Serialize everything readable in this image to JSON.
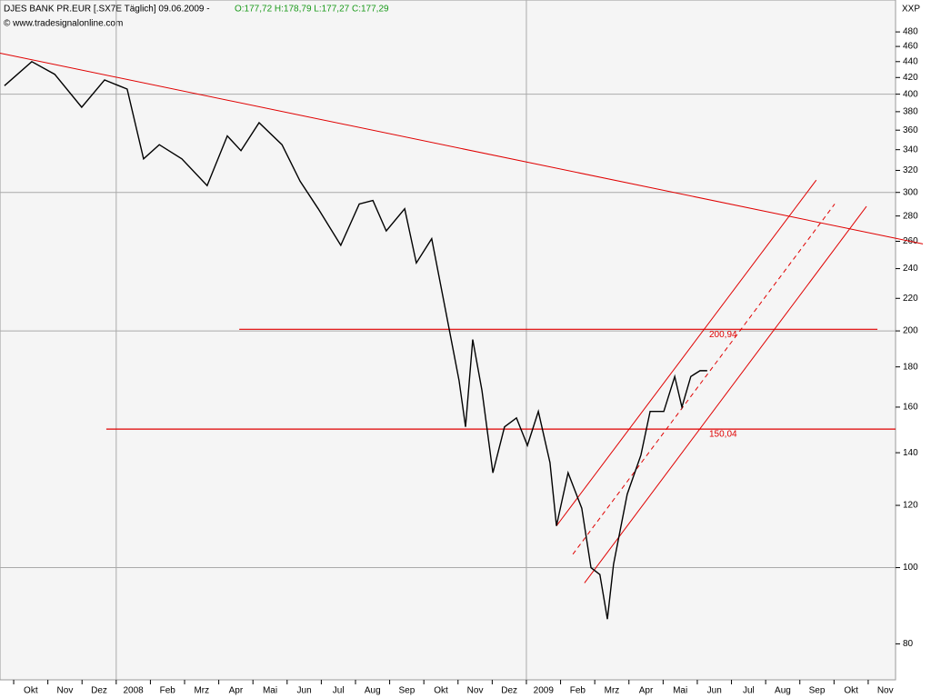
{
  "header": {
    "instrument": "DJES BANK PR.EUR [.SX7E  Täglich] 09.06.2009 -",
    "ohlc": "O:177,72 H:178,79 L:177,27 C:177,29",
    "source": "© www.tradesignalonline.com",
    "axis_name": "XXP"
  },
  "chart_data": {
    "type": "line",
    "log_y": true,
    "color": "#000000",
    "x": [
      -0.27,
      0.53,
      1.2,
      1.99,
      2.66,
      3.32,
      3.8,
      4.26,
      4.92,
      5.66,
      6.25,
      6.65,
      7.18,
      7.85,
      8.38,
      8.91,
      9.57,
      10.11,
      10.51,
      10.9,
      11.44,
      11.78,
      12.23,
      12.63,
      13.03,
      13.22,
      13.43,
      13.7,
      14.02,
      14.36,
      14.71,
      15.03,
      15.35,
      15.69,
      15.88,
      16.22,
      16.62,
      16.89,
      17.15,
      17.37,
      17.55,
      17.95,
      18.35,
      18.62,
      19.02,
      19.34,
      19.55,
      19.81,
      20.08,
      20.29
    ],
    "values": [
      410,
      440,
      424,
      385,
      417,
      406,
      331,
      345,
      331,
      306,
      354,
      339,
      368,
      345,
      310,
      286,
      257,
      290,
      293,
      268,
      286,
      244,
      262,
      213,
      173,
      151,
      195,
      168,
      132,
      151,
      155,
      143,
      158,
      136,
      113,
      132,
      119,
      100,
      98,
      86,
      101,
      124,
      139,
      158,
      158,
      175,
      160,
      175,
      178,
      178
    ],
    "xlim": [
      -0.4,
      25.8
    ],
    "ylim": [
      72,
      527
    ],
    "xticks": [
      {
        "value": 0,
        "label": "Okt"
      },
      {
        "value": 1,
        "label": "Nov"
      },
      {
        "value": 2,
        "label": "Dez"
      },
      {
        "value": 3,
        "label": "2008"
      },
      {
        "value": 4,
        "label": "Feb"
      },
      {
        "value": 5,
        "label": "Mrz"
      },
      {
        "value": 6,
        "label": "Apr"
      },
      {
        "value": 7,
        "label": "Mai"
      },
      {
        "value": 8,
        "label": "Jun"
      },
      {
        "value": 9,
        "label": "Jul"
      },
      {
        "value": 10,
        "label": "Aug"
      },
      {
        "value": 11,
        "label": "Sep"
      },
      {
        "value": 12,
        "label": "Okt"
      },
      {
        "value": 13,
        "label": "Nov"
      },
      {
        "value": 14,
        "label": "Dez"
      },
      {
        "value": 15,
        "label": "2009"
      },
      {
        "value": 16,
        "label": "Feb"
      },
      {
        "value": 17,
        "label": "Mrz"
      },
      {
        "value": 18,
        "label": "Apr"
      },
      {
        "value": 19,
        "label": "Mai"
      },
      {
        "value": 20,
        "label": "Jun"
      },
      {
        "value": 21,
        "label": "Jul"
      },
      {
        "value": 22,
        "label": "Aug"
      },
      {
        "value": 23,
        "label": "Sep"
      },
      {
        "value": 24,
        "label": "Okt"
      },
      {
        "value": 25,
        "label": "Nov"
      }
    ],
    "yticks": [
      80,
      100,
      120,
      140,
      160,
      180,
      200,
      220,
      240,
      260,
      280,
      300,
      320,
      340,
      360,
      380,
      400,
      420,
      440,
      460,
      480
    ],
    "ygrid": [
      100,
      200,
      300,
      400
    ],
    "xgrid": [
      3,
      15
    ],
    "hlines": [
      {
        "y": 200.94,
        "label": "200,94",
        "x": [
          6.6,
          25.27
        ]
      },
      {
        "y": 150.04,
        "label": "150,04",
        "x": [
          2.71,
          25.8
        ]
      }
    ],
    "trendlines": [
      {
        "x": [
          -0.4,
          26.6
        ],
        "y": [
          451,
          258
        ],
        "dashed": false
      },
      {
        "x": [
          15.88,
          23.48
        ],
        "y": [
          113,
          311
        ],
        "dashed": false
      },
      {
        "x": [
          16.36,
          24.02
        ],
        "y": [
          104,
          290
        ],
        "dashed": true
      },
      {
        "x": [
          16.7,
          24.95
        ],
        "y": [
          95.6,
          288
        ],
        "dashed": false
      }
    ],
    "line_color": "#e00000"
  }
}
